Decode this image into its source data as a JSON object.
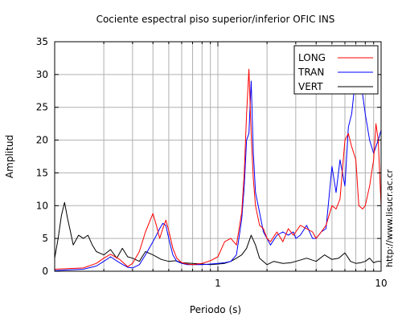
{
  "chart_data": {
    "type": "line",
    "title": "Cociente espectral piso superior/inferior  OFIC INS",
    "xlabel": "Periodo (s)",
    "ylabel": "Amplitud",
    "xscale": "log",
    "xlim": [
      0.1,
      10
    ],
    "ylim": [
      0,
      35
    ],
    "grid": true,
    "legend_position": "top-right",
    "xtick_labels": [
      "1",
      "10"
    ],
    "ytick_labels": [
      "0",
      "5",
      "10",
      "15",
      "20",
      "25",
      "30",
      "35"
    ],
    "annotation": "http://www.lisucr.ac.cr",
    "series": [
      {
        "name": "LONG",
        "color": "#ff0000",
        "x": [
          0.1,
          0.12,
          0.15,
          0.18,
          0.2,
          0.22,
          0.25,
          0.28,
          0.3,
          0.33,
          0.36,
          0.4,
          0.42,
          0.44,
          0.46,
          0.48,
          0.5,
          0.53,
          0.56,
          0.6,
          0.65,
          0.7,
          0.8,
          0.9,
          1.0,
          1.1,
          1.2,
          1.3,
          1.4,
          1.45,
          1.5,
          1.55,
          1.6,
          1.65,
          1.7,
          1.8,
          1.9,
          2.0,
          2.1,
          2.3,
          2.5,
          2.7,
          2.9,
          3.0,
          3.2,
          3.5,
          3.8,
          4.0,
          4.3,
          4.6,
          5.0,
          5.3,
          5.6,
          6.0,
          6.3,
          6.6,
          7.0,
          7.3,
          7.7,
          8.0,
          8.5,
          9.0,
          9.3,
          9.6,
          10.0
        ],
        "values": [
          0.3,
          0.4,
          0.5,
          1.2,
          2.0,
          2.6,
          1.8,
          0.7,
          1.2,
          3.0,
          6.0,
          8.8,
          7.0,
          5.0,
          6.5,
          7.8,
          6.2,
          3.5,
          2.0,
          1.3,
          1.1,
          1.0,
          1.2,
          1.6,
          2.2,
          4.5,
          5.0,
          4.0,
          9.0,
          15.0,
          24.0,
          30.8,
          21.0,
          14.0,
          10.0,
          7.0,
          6.5,
          5.0,
          4.5,
          6.0,
          4.5,
          6.5,
          5.5,
          6.0,
          7.0,
          6.5,
          6.0,
          5.0,
          6.0,
          7.0,
          10.0,
          9.5,
          11.0,
          20.0,
          21.0,
          19.0,
          17.0,
          10.0,
          9.5,
          10.0,
          13.0,
          17.0,
          22.5,
          20.0,
          10.0
        ]
      },
      {
        "name": "TRAN",
        "color": "#0000ff",
        "x": [
          0.1,
          0.12,
          0.15,
          0.18,
          0.2,
          0.22,
          0.25,
          0.28,
          0.3,
          0.33,
          0.36,
          0.4,
          0.42,
          0.44,
          0.46,
          0.48,
          0.5,
          0.53,
          0.56,
          0.6,
          0.65,
          0.7,
          0.8,
          0.9,
          1.0,
          1.1,
          1.2,
          1.3,
          1.4,
          1.45,
          1.5,
          1.55,
          1.6,
          1.65,
          1.7,
          1.8,
          1.9,
          2.0,
          2.1,
          2.3,
          2.5,
          2.7,
          2.9,
          3.0,
          3.2,
          3.5,
          3.8,
          4.0,
          4.3,
          4.6,
          5.0,
          5.3,
          5.6,
          6.0,
          6.3,
          6.6,
          7.0,
          7.3,
          7.7,
          8.0,
          8.5,
          9.0,
          9.3,
          9.6,
          10.0
        ],
        "values": [
          0.1,
          0.2,
          0.3,
          0.8,
          1.5,
          2.2,
          1.3,
          0.6,
          0.5,
          1.0,
          2.5,
          4.5,
          5.5,
          6.5,
          7.3,
          7.0,
          5.0,
          2.5,
          1.5,
          1.2,
          1.0,
          1.0,
          1.0,
          1.1,
          1.2,
          1.3,
          1.5,
          2.5,
          8.0,
          13.0,
          20.0,
          21.0,
          29.0,
          18.0,
          12.0,
          9.0,
          6.0,
          5.0,
          4.0,
          5.5,
          6.0,
          5.5,
          6.0,
          5.0,
          5.5,
          7.0,
          5.0,
          5.0,
          6.0,
          6.5,
          16.0,
          12.0,
          17.0,
          13.0,
          22.0,
          24.0,
          30.0,
          32.0,
          27.0,
          24.0,
          20.0,
          18.0,
          19.0,
          20.0,
          21.5
        ]
      },
      {
        "name": "VERT",
        "color": "#000000",
        "x": [
          0.1,
          0.105,
          0.11,
          0.115,
          0.12,
          0.125,
          0.13,
          0.14,
          0.15,
          0.16,
          0.17,
          0.18,
          0.2,
          0.22,
          0.24,
          0.26,
          0.28,
          0.3,
          0.33,
          0.36,
          0.4,
          0.45,
          0.5,
          0.55,
          0.6,
          0.7,
          0.8,
          0.9,
          1.0,
          1.1,
          1.2,
          1.3,
          1.4,
          1.5,
          1.6,
          1.7,
          1.8,
          2.0,
          2.2,
          2.5,
          2.8,
          3.0,
          3.5,
          4.0,
          4.5,
          5.0,
          5.5,
          6.0,
          6.5,
          7.0,
          7.5,
          8.0,
          8.5,
          9.0,
          9.5,
          10.0
        ],
        "values": [
          2.0,
          5.0,
          8.5,
          10.5,
          8.0,
          6.0,
          4.0,
          5.5,
          5.0,
          5.5,
          4.0,
          3.0,
          2.5,
          3.3,
          2.0,
          3.5,
          2.2,
          2.0,
          1.5,
          3.0,
          2.5,
          1.8,
          1.5,
          1.6,
          1.3,
          1.2,
          1.1,
          1.0,
          1.1,
          1.2,
          1.5,
          2.0,
          2.5,
          3.5,
          5.5,
          4.0,
          2.0,
          1.0,
          1.5,
          1.2,
          1.3,
          1.5,
          2.0,
          1.5,
          2.5,
          1.8,
          2.0,
          2.8,
          1.5,
          1.2,
          1.3,
          1.5,
          2.0,
          1.3,
          1.5,
          1.5
        ]
      }
    ]
  }
}
